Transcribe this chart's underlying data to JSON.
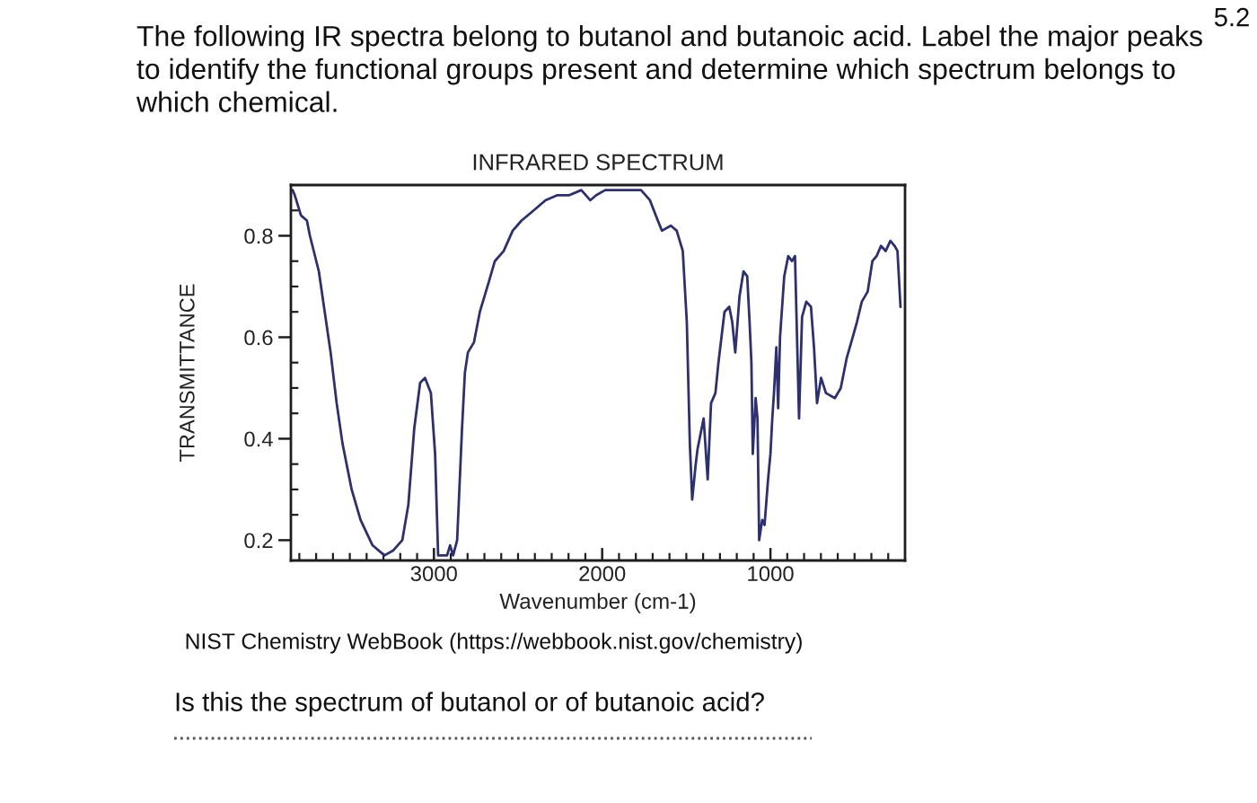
{
  "chart_data": {
    "type": "line",
    "title": "INFRARED SPECTRUM",
    "xlabel": "Wavenumber (cm-1)",
    "ylabel": "TRANSMITTANCE",
    "color": "#2c2f72",
    "x": [
      3840,
      3827,
      3790,
      3755,
      3737,
      3684,
      3649,
      3614,
      3578,
      3543,
      3489,
      3436,
      3365,
      3294,
      3241,
      3188,
      3152,
      3117,
      3082,
      3053,
      3018,
      2993,
      2975,
      2960,
      2922,
      2904,
      2886,
      2862,
      2833,
      2816,
      2798,
      2762,
      2727,
      2673,
      2638,
      2585,
      2532,
      2479,
      2407,
      2337,
      2266,
      2195,
      2124,
      2071,
      2035,
      1982,
      1876,
      1769,
      1716,
      1681,
      1645,
      1592,
      1557,
      1521,
      1497,
      1479,
      1465,
      1444,
      1433,
      1397,
      1373,
      1353,
      1327,
      1309,
      1273,
      1245,
      1227,
      1209,
      1184,
      1160,
      1138,
      1124,
      1113,
      1105,
      1088,
      1077,
      1067,
      1049,
      1035,
      1014,
      1000,
      989,
      979,
      965,
      954,
      943,
      918,
      894,
      872,
      854,
      830,
      812,
      787,
      759,
      741,
      723,
      699,
      670,
      617,
      582,
      546,
      511,
      486,
      457,
      422,
      394,
      369,
      343,
      315,
      287,
      262,
      245,
      227
    ],
    "values": [
      0.89,
      0.88,
      0.84,
      0.83,
      0.8,
      0.73,
      0.65,
      0.57,
      0.47,
      0.39,
      0.3,
      0.24,
      0.19,
      0.17,
      0.18,
      0.2,
      0.27,
      0.42,
      0.51,
      0.52,
      0.49,
      0.37,
      0.17,
      0.17,
      0.17,
      0.19,
      0.17,
      0.2,
      0.42,
      0.53,
      0.57,
      0.59,
      0.65,
      0.71,
      0.75,
      0.77,
      0.81,
      0.83,
      0.85,
      0.87,
      0.88,
      0.88,
      0.89,
      0.87,
      0.88,
      0.89,
      0.89,
      0.89,
      0.87,
      0.84,
      0.81,
      0.82,
      0.81,
      0.77,
      0.63,
      0.39,
      0.28,
      0.35,
      0.38,
      0.44,
      0.32,
      0.47,
      0.49,
      0.55,
      0.65,
      0.66,
      0.63,
      0.57,
      0.68,
      0.73,
      0.72,
      0.63,
      0.55,
      0.37,
      0.48,
      0.44,
      0.2,
      0.24,
      0.23,
      0.32,
      0.37,
      0.44,
      0.49,
      0.58,
      0.46,
      0.6,
      0.72,
      0.76,
      0.75,
      0.76,
      0.44,
      0.64,
      0.67,
      0.66,
      0.58,
      0.47,
      0.52,
      0.49,
      0.48,
      0.5,
      0.56,
      0.6,
      0.63,
      0.67,
      0.69,
      0.75,
      0.76,
      0.78,
      0.77,
      0.79,
      0.78,
      0.77,
      0.66
    ],
    "xlim": [
      3850,
      200
    ],
    "ylim": [
      0.16,
      0.9
    ],
    "xticks": [
      {
        "value": 3800,
        "label": null
      },
      {
        "value": 3700,
        "label": null
      },
      {
        "value": 3600,
        "label": null
      },
      {
        "value": 3500,
        "label": null
      },
      {
        "value": 3400,
        "label": null
      },
      {
        "value": 3300,
        "label": null
      },
      {
        "value": 3200,
        "label": null
      },
      {
        "value": 3100,
        "label": null
      },
      3000,
      {
        "value": 2900,
        "label": null
      },
      {
        "value": 2800,
        "label": null
      },
      {
        "value": 2700,
        "label": null
      },
      {
        "value": 2600,
        "label": null
      },
      {
        "value": 2500,
        "label": null
      },
      {
        "value": 2400,
        "label": null
      },
      {
        "value": 2300,
        "label": null
      },
      {
        "value": 2200,
        "label": null
      },
      {
        "value": 2100,
        "label": null
      },
      2000,
      {
        "value": 1900,
        "label": null
      },
      {
        "value": 1800,
        "label": null
      },
      {
        "value": 1700,
        "label": null
      },
      {
        "value": 1600,
        "label": null
      },
      {
        "value": 1500,
        "label": null
      },
      {
        "value": 1400,
        "label": null
      },
      {
        "value": 1300,
        "label": null
      },
      {
        "value": 1200,
        "label": null
      },
      {
        "value": 1100,
        "label": null
      },
      1000,
      {
        "value": 900,
        "label": null
      },
      {
        "value": 800,
        "label": null
      },
      {
        "value": 700,
        "label": null
      },
      {
        "value": 600,
        "label": null
      },
      {
        "value": 500,
        "label": null
      },
      {
        "value": 400,
        "label": null
      },
      {
        "value": 300,
        "label": null
      }
    ],
    "yticks": [
      0.2,
      {
        "value": 0.25,
        "label": null
      },
      {
        "value": 0.3,
        "label": null
      },
      {
        "value": 0.35,
        "label": null
      },
      0.4,
      {
        "value": 0.45,
        "label": null
      },
      {
        "value": 0.5,
        "label": null
      },
      {
        "value": 0.55,
        "label": null
      },
      0.6,
      {
        "value": 0.65,
        "label": null
      },
      {
        "value": 0.7,
        "label": null
      },
      {
        "value": 0.75,
        "label": null
      },
      0.8,
      {
        "value": 0.85,
        "label": null
      }
    ],
    "annotations": [
      "5.2",
      "The following IR spectra belong to butanol and butanoic acid. Label the major peaks to identify the functional groups present and determine which spectrum belongs to which chemical.",
      "NIST Chemistry WebBook (https://webbook.nist.gov/chemistry)",
      "Is this the spectrum of butanol or of butanoic acid?"
    ]
  }
}
